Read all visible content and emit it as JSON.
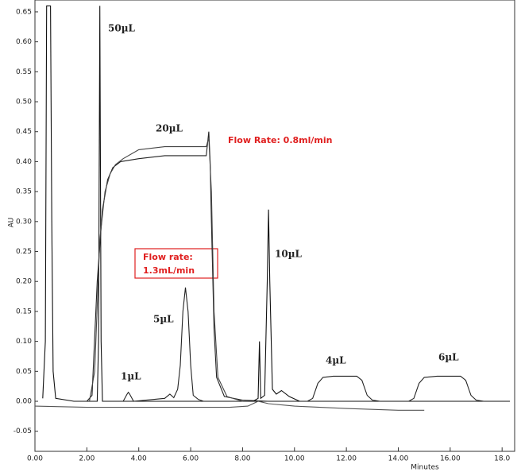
{
  "chart_data": {
    "type": "line",
    "ylabel": "AU",
    "xlabel": "Minutes",
    "annotations": [
      "50µL",
      "20µL",
      "Flow Rate: 0.8ml/min",
      "Flow rate:",
      "1.3mL/min",
      "10µL",
      "5µL",
      "1µL",
      "4µL",
      "6µL"
    ],
    "xlim": [
      0,
      18.3
    ],
    "ylim": [
      -0.07,
      0.66
    ],
    "xticks": [
      {
        "value": 0,
        "label": "0.00"
      },
      {
        "value": 2,
        "label": "2.00"
      },
      {
        "value": 4,
        "label": "4.00"
      },
      {
        "value": 6,
        "label": "6.00"
      },
      {
        "value": 8,
        "label": "8.00"
      },
      {
        "value": 10,
        "label": "10.00"
      },
      {
        "value": 12,
        "label": "12.00"
      },
      {
        "value": 14,
        "label": "14.00"
      },
      {
        "value": 16,
        "label": "16.00"
      },
      {
        "value": 18,
        "label": "18.0"
      }
    ],
    "yticks": [
      0.65,
      {
        "value": 0.6,
        "label": "0.60"
      },
      0.55,
      {
        "value": 0.5,
        "label": "0.50"
      },
      0.45,
      {
        "value": 0.4,
        "label": "0.40"
      },
      0.35,
      {
        "value": 0.3,
        "label": "0.30"
      },
      0.25,
      {
        "value": 0.2,
        "label": "0.20"
      },
      0.15,
      {
        "value": 0.1,
        "label": "0.10"
      },
      0.05,
      {
        "value": 0,
        "label": "0.00"
      },
      -0.05
    ],
    "series": [
      {
        "color": "#111",
        "x": [
          0.3,
          0.4,
          0.45,
          0.5,
          0.6,
          0.65,
          0.7,
          0.8,
          1.5,
          2.4,
          2.45,
          2.5,
          2.55,
          2.6,
          3.5,
          8,
          18.3
        ],
        "values": [
          0.005,
          0.1,
          0.66,
          0.66,
          0.66,
          0.3,
          0.05,
          0.005,
          0,
          0,
          0.1,
          0.66,
          0.1,
          0,
          0,
          0,
          0
        ]
      },
      {
        "color": "#222",
        "x": [
          2.0,
          2.2,
          2.4,
          2.6,
          2.8,
          3.0,
          3.3,
          4,
          5,
          6,
          6.6,
          6.7,
          6.75,
          6.8,
          6.9,
          7.0,
          7.3,
          8,
          9
        ],
        "values": [
          0,
          0.01,
          0.2,
          0.32,
          0.37,
          0.39,
          0.4,
          0.405,
          0.41,
          0.41,
          0.41,
          0.45,
          0.4,
          0.3,
          0.12,
          0.04,
          0.008,
          0.002,
          0
        ]
      },
      {
        "color": "#444",
        "x": [
          2.1,
          2.3,
          2.5,
          2.7,
          2.9,
          3.1,
          3.4,
          4,
          5,
          6,
          6.6,
          6.7,
          6.8,
          6.9,
          7.05,
          7.4,
          8
        ],
        "values": [
          0,
          0.05,
          0.27,
          0.35,
          0.38,
          0.395,
          0.405,
          0.42,
          0.425,
          0.425,
          0.425,
          0.44,
          0.35,
          0.15,
          0.04,
          0.008,
          0
        ]
      },
      {
        "color": "#222",
        "x": [
          3.4,
          3.55,
          3.6,
          3.65,
          3.8,
          5.0,
          5.2,
          5.35,
          5.5,
          5.6,
          5.7,
          5.8,
          5.9,
          6.0,
          6.1,
          6.3,
          6.5
        ],
        "values": [
          0,
          0.012,
          0.015,
          0.012,
          0,
          0.005,
          0.012,
          0.006,
          0.02,
          0.06,
          0.15,
          0.19,
          0.15,
          0.06,
          0.01,
          0.003,
          0
        ]
      },
      {
        "color": "#111",
        "x": [
          8.4,
          8.6,
          8.65,
          8.7,
          8.85,
          8.95,
          9.0,
          9.05,
          9.15,
          9.3,
          9.5,
          9.8,
          10.2
        ],
        "values": [
          0,
          0.005,
          0.1,
          0.005,
          0.01,
          0.2,
          0.32,
          0.2,
          0.02,
          0.012,
          0.018,
          0.008,
          0
        ]
      },
      {
        "color": "#222",
        "x": [
          10.5,
          10.7,
          10.9,
          11.1,
          11.5,
          12.0,
          12.4,
          12.6,
          12.8,
          13.0,
          13.3
        ],
        "values": [
          0,
          0.005,
          0.03,
          0.04,
          0.042,
          0.042,
          0.042,
          0.035,
          0.01,
          0.002,
          0
        ]
      },
      {
        "color": "#222",
        "x": [
          14.4,
          14.6,
          14.8,
          15.0,
          15.5,
          16.0,
          16.4,
          16.6,
          16.8,
          17.0,
          17.3
        ],
        "values": [
          0,
          0.005,
          0.03,
          0.04,
          0.042,
          0.042,
          0.042,
          0.035,
          0.01,
          0.002,
          0
        ]
      },
      {
        "color": "#555",
        "x": [
          0,
          2,
          4,
          6,
          7.5,
          8.2,
          8.6,
          9,
          10,
          12,
          14,
          15.0
        ],
        "values": [
          -0.008,
          -0.01,
          -0.01,
          -0.01,
          -0.01,
          -0.008,
          0.0,
          -0.004,
          -0.008,
          -0.012,
          -0.015,
          -0.015
        ]
      }
    ]
  }
}
